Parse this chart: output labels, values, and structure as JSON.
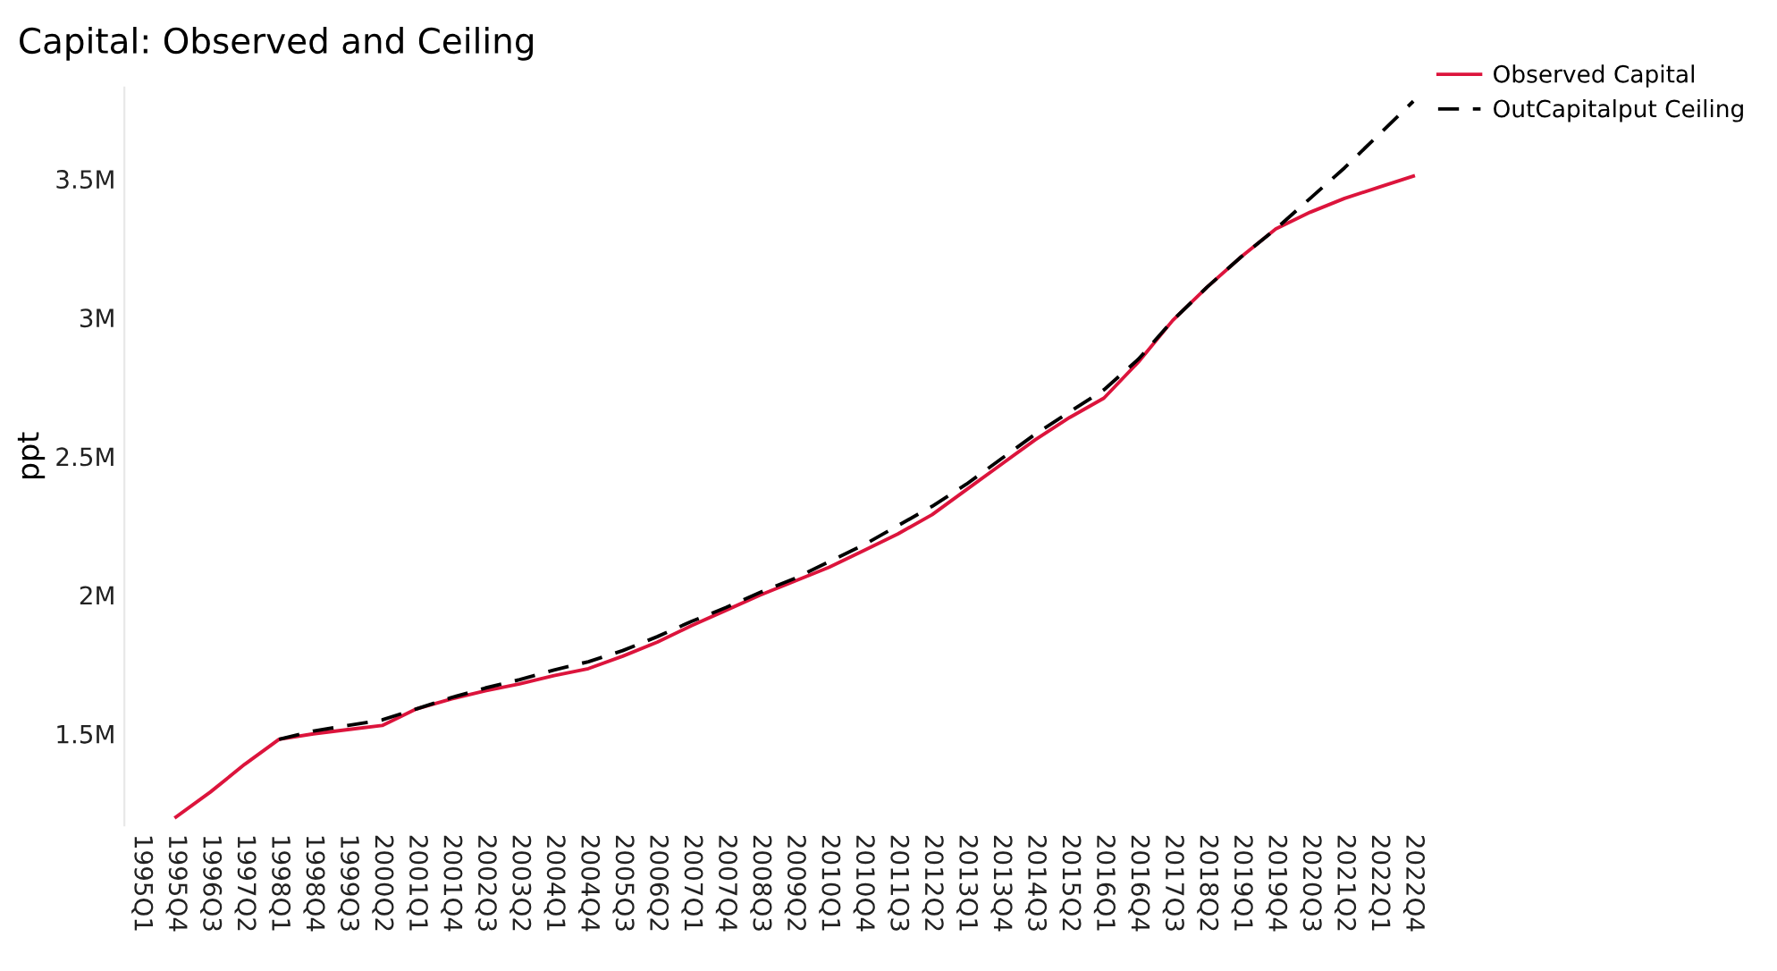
{
  "chart_data": {
    "type": "line",
    "title": "Capital: Observed and Ceiling",
    "ylabel": "ppt",
    "categories": [
      "1995Q1",
      "1995Q4",
      "1996Q3",
      "1997Q2",
      "1998Q1",
      "1998Q4",
      "1999Q3",
      "2000Q2",
      "2001Q1",
      "2001Q4",
      "2002Q3",
      "2003Q2",
      "2004Q1",
      "2004Q4",
      "2005Q3",
      "2006Q2",
      "2007Q1",
      "2007Q4",
      "2008Q3",
      "2009Q2",
      "2010Q1",
      "2010Q4",
      "2011Q3",
      "2012Q2",
      "2013Q1",
      "2013Q4",
      "2014Q3",
      "2015Q2",
      "2016Q1",
      "2016Q4",
      "2017Q3",
      "2018Q2",
      "2019Q1",
      "2019Q4",
      "2020Q3",
      "2021Q2",
      "2022Q1",
      "2022Q4"
    ],
    "series": [
      {
        "name": "Observed Capital",
        "color": "#dc143c",
        "line_style": "solid",
        "values": [
          null,
          1200000,
          1290000,
          1390000,
          1480000,
          1500000,
          1515000,
          1530000,
          1590000,
          1625000,
          1655000,
          1680000,
          1710000,
          1735000,
          1780000,
          1830000,
          1890000,
          1945000,
          2000000,
          2050000,
          2100000,
          2160000,
          2220000,
          2290000,
          2380000,
          2470000,
          2560000,
          2640000,
          2710000,
          2840000,
          2990000,
          3110000,
          3220000,
          3320000,
          3380000,
          3430000,
          3470000,
          3510000
        ]
      },
      {
        "name": "OutCapitalput Ceiling",
        "color": "#000000",
        "line_style": "dashed",
        "values": [
          null,
          null,
          null,
          null,
          1480000,
          1510000,
          1530000,
          1550000,
          1590000,
          1630000,
          1665000,
          1695000,
          1730000,
          1760000,
          1800000,
          1850000,
          1905000,
          1955000,
          2010000,
          2060000,
          2120000,
          2180000,
          2250000,
          2320000,
          2400000,
          2490000,
          2580000,
          2660000,
          2740000,
          2850000,
          2990000,
          3110000,
          3220000,
          3320000,
          3430000,
          3540000,
          3660000,
          3780000
        ]
      }
    ],
    "ylim": [
      1170000,
      3830000
    ],
    "yticks": [
      {
        "value": 1500000,
        "label": "1.5M"
      },
      {
        "value": 2000000,
        "label": "2M"
      },
      {
        "value": 2500000,
        "label": "2.5M"
      },
      {
        "value": 3000000,
        "label": "3M"
      },
      {
        "value": 3500000,
        "label": "3.5M"
      }
    ],
    "grid": false,
    "legend": "top right",
    "marker": "none"
  }
}
